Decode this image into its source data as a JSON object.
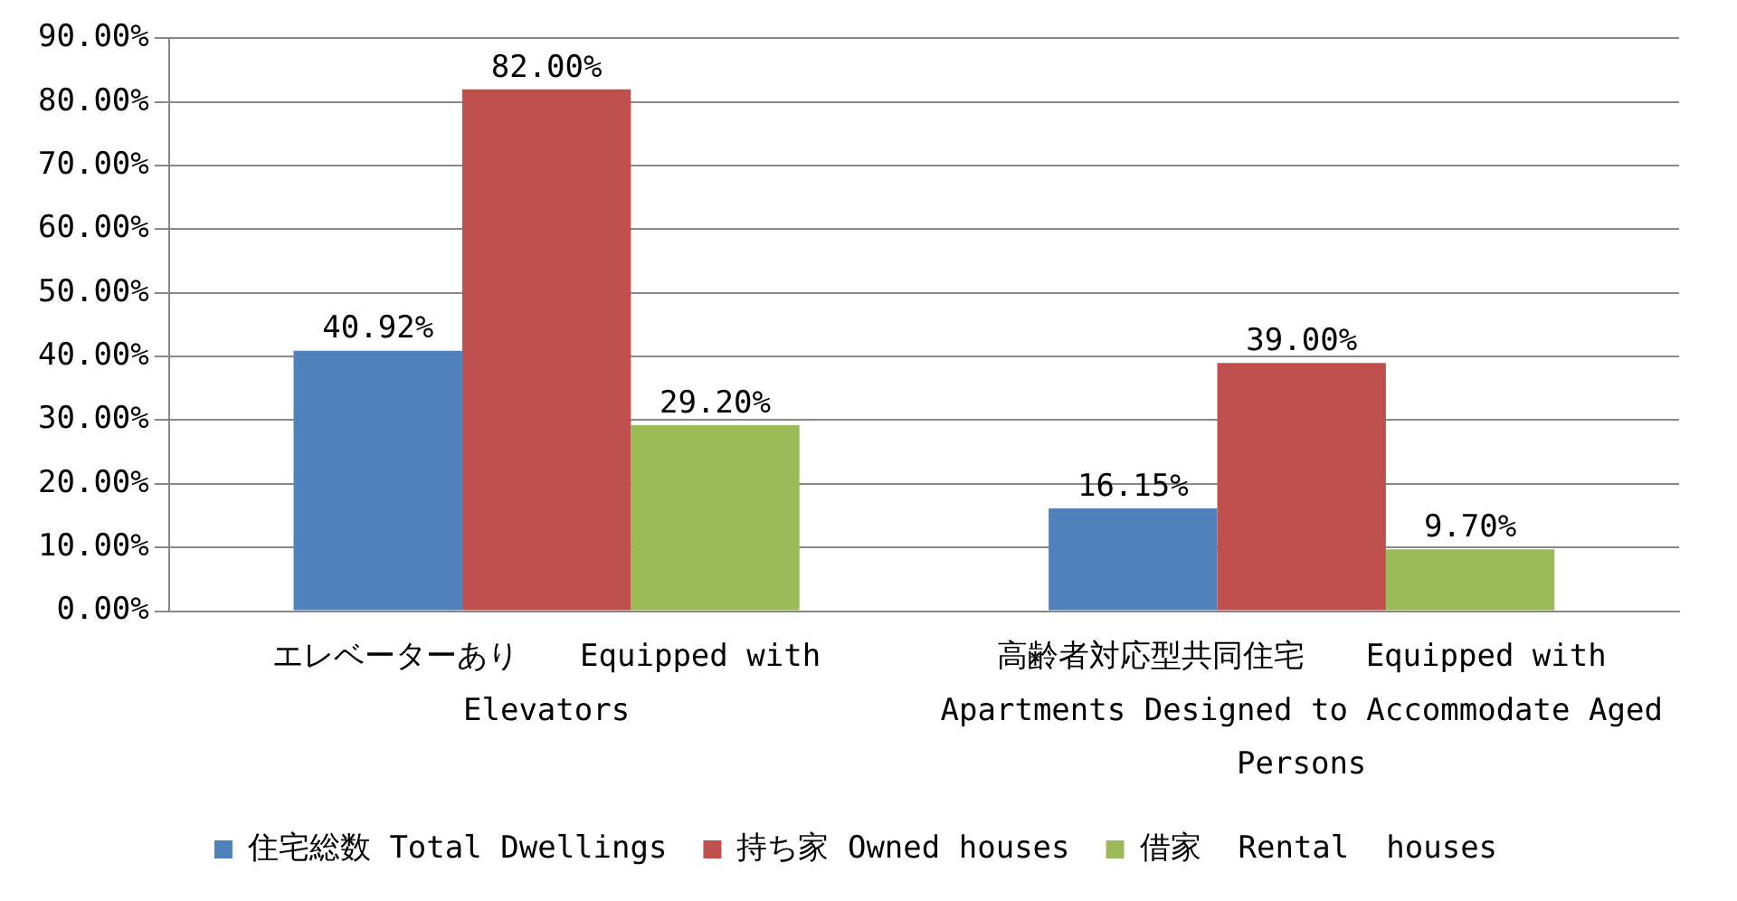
{
  "chart_data": {
    "type": "bar",
    "categories": [
      "エレベーターあり　　Equipped with Elevators",
      "高齢者対応型共同住宅　　Equipped with  Apartments Designed to Accommodate Aged Persons"
    ],
    "series": [
      {
        "name": "住宅総数 Total Dwellings",
        "color": "#4f81bd",
        "values": [
          40.92,
          16.15
        ],
        "value_labels": [
          "40.92%",
          "16.15%"
        ]
      },
      {
        "name": "持ち家 Owned houses",
        "color": "#c0504d",
        "values": [
          82.0,
          39.0
        ],
        "value_labels": [
          "82.00%",
          "39.00%"
        ]
      },
      {
        "name": "借家  Rental  houses",
        "color": "#9bbb59",
        "values": [
          29.2,
          9.7
        ],
        "value_labels": [
          "29.20%",
          "9.70%"
        ]
      }
    ],
    "ylim": [
      0,
      90
    ],
    "yticks": [
      {
        "value": 0,
        "label": "0.00%"
      },
      {
        "value": 10,
        "label": "10.00%"
      },
      {
        "value": 20,
        "label": "20.00%"
      },
      {
        "value": 30,
        "label": "30.00%"
      },
      {
        "value": 40,
        "label": "40.00%"
      },
      {
        "value": 50,
        "label": "50.00%"
      },
      {
        "value": 60,
        "label": "60.00%"
      },
      {
        "value": 70,
        "label": "70.00%"
      },
      {
        "value": 80,
        "label": "80.00%"
      },
      {
        "value": 90,
        "label": "90.00%"
      }
    ],
    "grid": "y",
    "legend": "bottom"
  }
}
